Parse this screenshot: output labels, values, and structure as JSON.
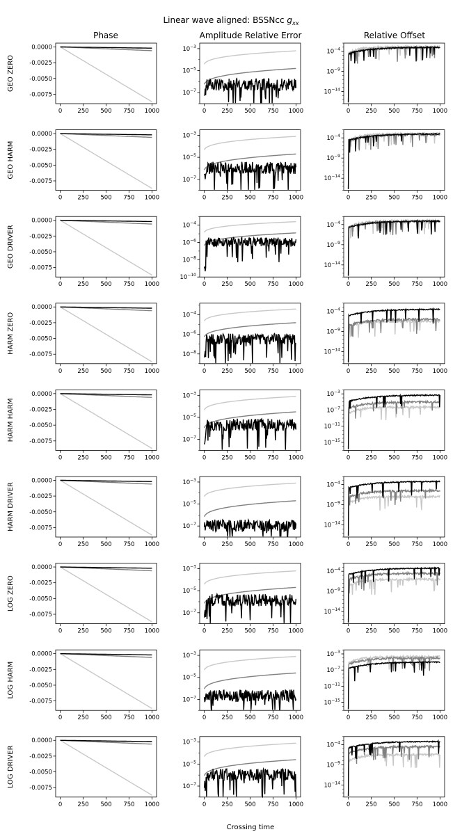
{
  "chart_data": {
    "type": "line",
    "title_prefix": "Linear wave aligned: BSSNcc ",
    "title_var": "g",
    "title_sub": "xx",
    "xlabel": "Crossing time",
    "column_titles": [
      "Phase",
      "Amplitude Relative Error",
      "Relative Offset"
    ],
    "row_labels": [
      "GEO ZERO",
      "GEO HARM",
      "GEO DRIVER",
      "HARM ZERO",
      "HARM HARM",
      "HARM DRIVER",
      "LOG ZERO",
      "LOG HARM",
      "LOG DRIVER"
    ],
    "x_ticks": [
      0,
      250,
      500,
      750,
      1000
    ],
    "xlim": [
      -50,
      1050
    ],
    "series_colors": [
      "#c8c8c8",
      "#808080",
      "#000000"
    ],
    "phase": {
      "ylim": [
        -0.009,
        0.0006
      ],
      "yticks": [
        0.0,
        -0.0025,
        -0.005,
        -0.0075
      ],
      "ytick_labels": [
        "0.0000",
        "-0.0025",
        "-0.0050",
        "-0.0075"
      ],
      "series_end_values": [
        -0.0087,
        -0.0006,
        -0.0002
      ]
    },
    "amplitude": [
      {
        "row": "GEO ZERO",
        "ylim_exp": [
          -8,
          -2.5
        ],
        "tick_exps": [
          -3,
          -5,
          -7
        ],
        "end_exps": [
          -3.2,
          -4.8,
          -5.9
        ]
      },
      {
        "row": "GEO HARM",
        "ylim_exp": [
          -8,
          -2.5
        ],
        "tick_exps": [
          -3,
          -5,
          -7
        ],
        "end_exps": [
          -3.1,
          -4.7,
          -5.6
        ]
      },
      {
        "row": "GEO DRIVER",
        "ylim_exp": [
          -10,
          -3
        ],
        "tick_exps": [
          -4,
          -6,
          -8,
          -10
        ],
        "end_exps": [
          -3.6,
          -4.9,
          -5.6
        ]
      },
      {
        "row": "HARM ZERO",
        "ylim_exp": [
          -9,
          -2.8
        ],
        "tick_exps": [
          -4,
          -6,
          -8
        ],
        "end_exps": [
          -3.4,
          -4.8,
          -6.1
        ]
      },
      {
        "row": "HARM HARM",
        "ylim_exp": [
          -8,
          -2.5
        ],
        "tick_exps": [
          -3,
          -5,
          -7
        ],
        "end_exps": [
          -3.1,
          -4.5,
          -5.3
        ]
      },
      {
        "row": "HARM DRIVER",
        "ylim_exp": [
          -8,
          -2.5
        ],
        "tick_exps": [
          -3,
          -5,
          -7
        ],
        "end_exps": [
          -3.1,
          -4.7,
          -6.6
        ]
      },
      {
        "row": "LOG ZERO",
        "ylim_exp": [
          -8,
          -2.5
        ],
        "tick_exps": [
          -3,
          -5,
          -7
        ],
        "end_exps": [
          -3.2,
          -4.7,
          -5.5
        ]
      },
      {
        "row": "LOG HARM",
        "ylim_exp": [
          -8,
          -2.5
        ],
        "tick_exps": [
          -3,
          -5,
          -7
        ],
        "end_exps": [
          -3.1,
          -4.6,
          -6.3
        ]
      },
      {
        "row": "LOG DRIVER",
        "ylim_exp": [
          -8,
          -2.5
        ],
        "tick_exps": [
          -3,
          -5,
          -7
        ],
        "end_exps": [
          -3.1,
          -4.6,
          -5.6
        ]
      }
    ],
    "offset": [
      {
        "row": "GEO ZERO",
        "ylim_exp": [
          -17,
          -2
        ],
        "tick_exps": [
          -4,
          -9,
          -14
        ],
        "end_exps": [
          -2.9,
          -3.1,
          -3.0
        ]
      },
      {
        "row": "GEO HARM",
        "ylim_exp": [
          -17,
          -2
        ],
        "tick_exps": [
          -4,
          -9,
          -14
        ],
        "end_exps": [
          -3.0,
          -3.2,
          -3.0
        ]
      },
      {
        "row": "GEO DRIVER",
        "ylim_exp": [
          -17,
          -2
        ],
        "tick_exps": [
          -4,
          -9,
          -14
        ],
        "end_exps": [
          -3.1,
          -3.2,
          -3.1
        ]
      },
      {
        "row": "HARM ZERO",
        "ylim_exp": [
          -17,
          -2
        ],
        "tick_exps": [
          -4,
          -9,
          -14
        ],
        "end_exps": [
          -6.5,
          -6.0,
          -3.5
        ]
      },
      {
        "row": "HARM HARM",
        "ylim_exp": [
          -17,
          -2
        ],
        "tick_exps": [
          -3,
          -7,
          -11,
          -15
        ],
        "end_exps": [
          -6.3,
          -5.0,
          -3.3
        ]
      },
      {
        "row": "HARM DRIVER",
        "ylim_exp": [
          -17,
          -2
        ],
        "tick_exps": [
          -4,
          -9,
          -14
        ],
        "end_exps": [
          -7.0,
          -5.5,
          -3.2
        ]
      },
      {
        "row": "LOG ZERO",
        "ylim_exp": [
          -17,
          -2
        ],
        "tick_exps": [
          -4,
          -9,
          -14
        ],
        "end_exps": [
          -6.0,
          -4.5,
          -3.2
        ]
      },
      {
        "row": "LOG HARM",
        "ylim_exp": [
          -17,
          -2
        ],
        "tick_exps": [
          -3,
          -7,
          -11,
          -15
        ],
        "end_exps": [
          -3.7,
          -4.0,
          -5.0
        ]
      },
      {
        "row": "LOG DRIVER",
        "ylim_exp": [
          -17,
          -2
        ],
        "tick_exps": [
          -4,
          -9,
          -14
        ],
        "end_exps": [
          -6.5,
          -4.5,
          -3.2
        ]
      }
    ]
  }
}
